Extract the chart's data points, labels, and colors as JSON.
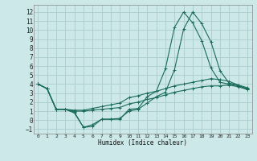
{
  "xlabel": "Humidex (Indice chaleur)",
  "ylabel": "",
  "xlim": [
    -0.5,
    23.5
  ],
  "ylim": [
    -1.5,
    12.8
  ],
  "yticks": [
    -1,
    0,
    1,
    2,
    3,
    4,
    5,
    6,
    7,
    8,
    9,
    10,
    11,
    12
  ],
  "xticks": [
    0,
    1,
    2,
    3,
    4,
    5,
    6,
    7,
    8,
    9,
    10,
    11,
    12,
    13,
    14,
    15,
    16,
    17,
    18,
    19,
    20,
    21,
    22,
    23
  ],
  "background_color": "#cce8e8",
  "grid_color": "#aacccc",
  "line_color": "#1a6b5a",
  "line1_x": [
    0,
    1,
    2,
    3,
    4,
    5,
    6,
    7,
    8,
    9,
    10,
    11,
    12,
    13,
    14,
    15,
    16,
    17,
    18,
    19,
    20,
    21,
    22,
    23
  ],
  "line1_y": [
    4.0,
    3.5,
    1.2,
    1.2,
    0.8,
    -0.8,
    -0.7,
    0.1,
    0.1,
    0.1,
    1.2,
    1.3,
    2.6,
    3.2,
    5.7,
    10.3,
    12.0,
    10.8,
    8.8,
    5.8,
    4.2,
    4.0,
    3.8,
    3.5
  ],
  "line2_x": [
    0,
    1,
    2,
    3,
    4,
    5,
    6,
    7,
    8,
    9,
    10,
    11,
    12,
    13,
    14,
    15,
    16,
    17,
    18,
    19,
    20,
    21,
    22,
    23
  ],
  "line2_y": [
    4.0,
    3.5,
    1.2,
    1.2,
    1.1,
    1.1,
    1.3,
    1.5,
    1.7,
    1.9,
    2.5,
    2.7,
    3.0,
    3.2,
    3.5,
    3.8,
    4.0,
    4.2,
    4.4,
    4.6,
    4.5,
    4.3,
    3.9,
    3.6
  ],
  "line3_x": [
    0,
    1,
    2,
    3,
    4,
    5,
    6,
    7,
    8,
    9,
    10,
    11,
    12,
    13,
    14,
    15,
    16,
    17,
    18,
    19,
    20,
    21,
    22,
    23
  ],
  "line3_y": [
    4.0,
    3.5,
    1.2,
    1.2,
    1.0,
    1.0,
    1.1,
    1.2,
    1.3,
    1.4,
    1.8,
    2.0,
    2.3,
    2.5,
    2.8,
    3.1,
    3.3,
    3.5,
    3.7,
    3.8,
    3.8,
    3.9,
    3.7,
    3.4
  ],
  "line4_x": [
    0,
    1,
    2,
    3,
    4,
    5,
    6,
    7,
    8,
    9,
    10,
    11,
    12,
    13,
    14,
    15,
    16,
    17,
    18,
    19,
    20,
    21,
    22,
    23
  ],
  "line4_y": [
    4.0,
    3.5,
    1.2,
    1.2,
    0.9,
    -0.8,
    -0.5,
    0.1,
    0.1,
    0.2,
    1.0,
    1.2,
    1.9,
    2.6,
    3.1,
    5.6,
    10.1,
    12.0,
    10.7,
    8.7,
    5.5,
    4.1,
    3.9,
    3.4
  ]
}
